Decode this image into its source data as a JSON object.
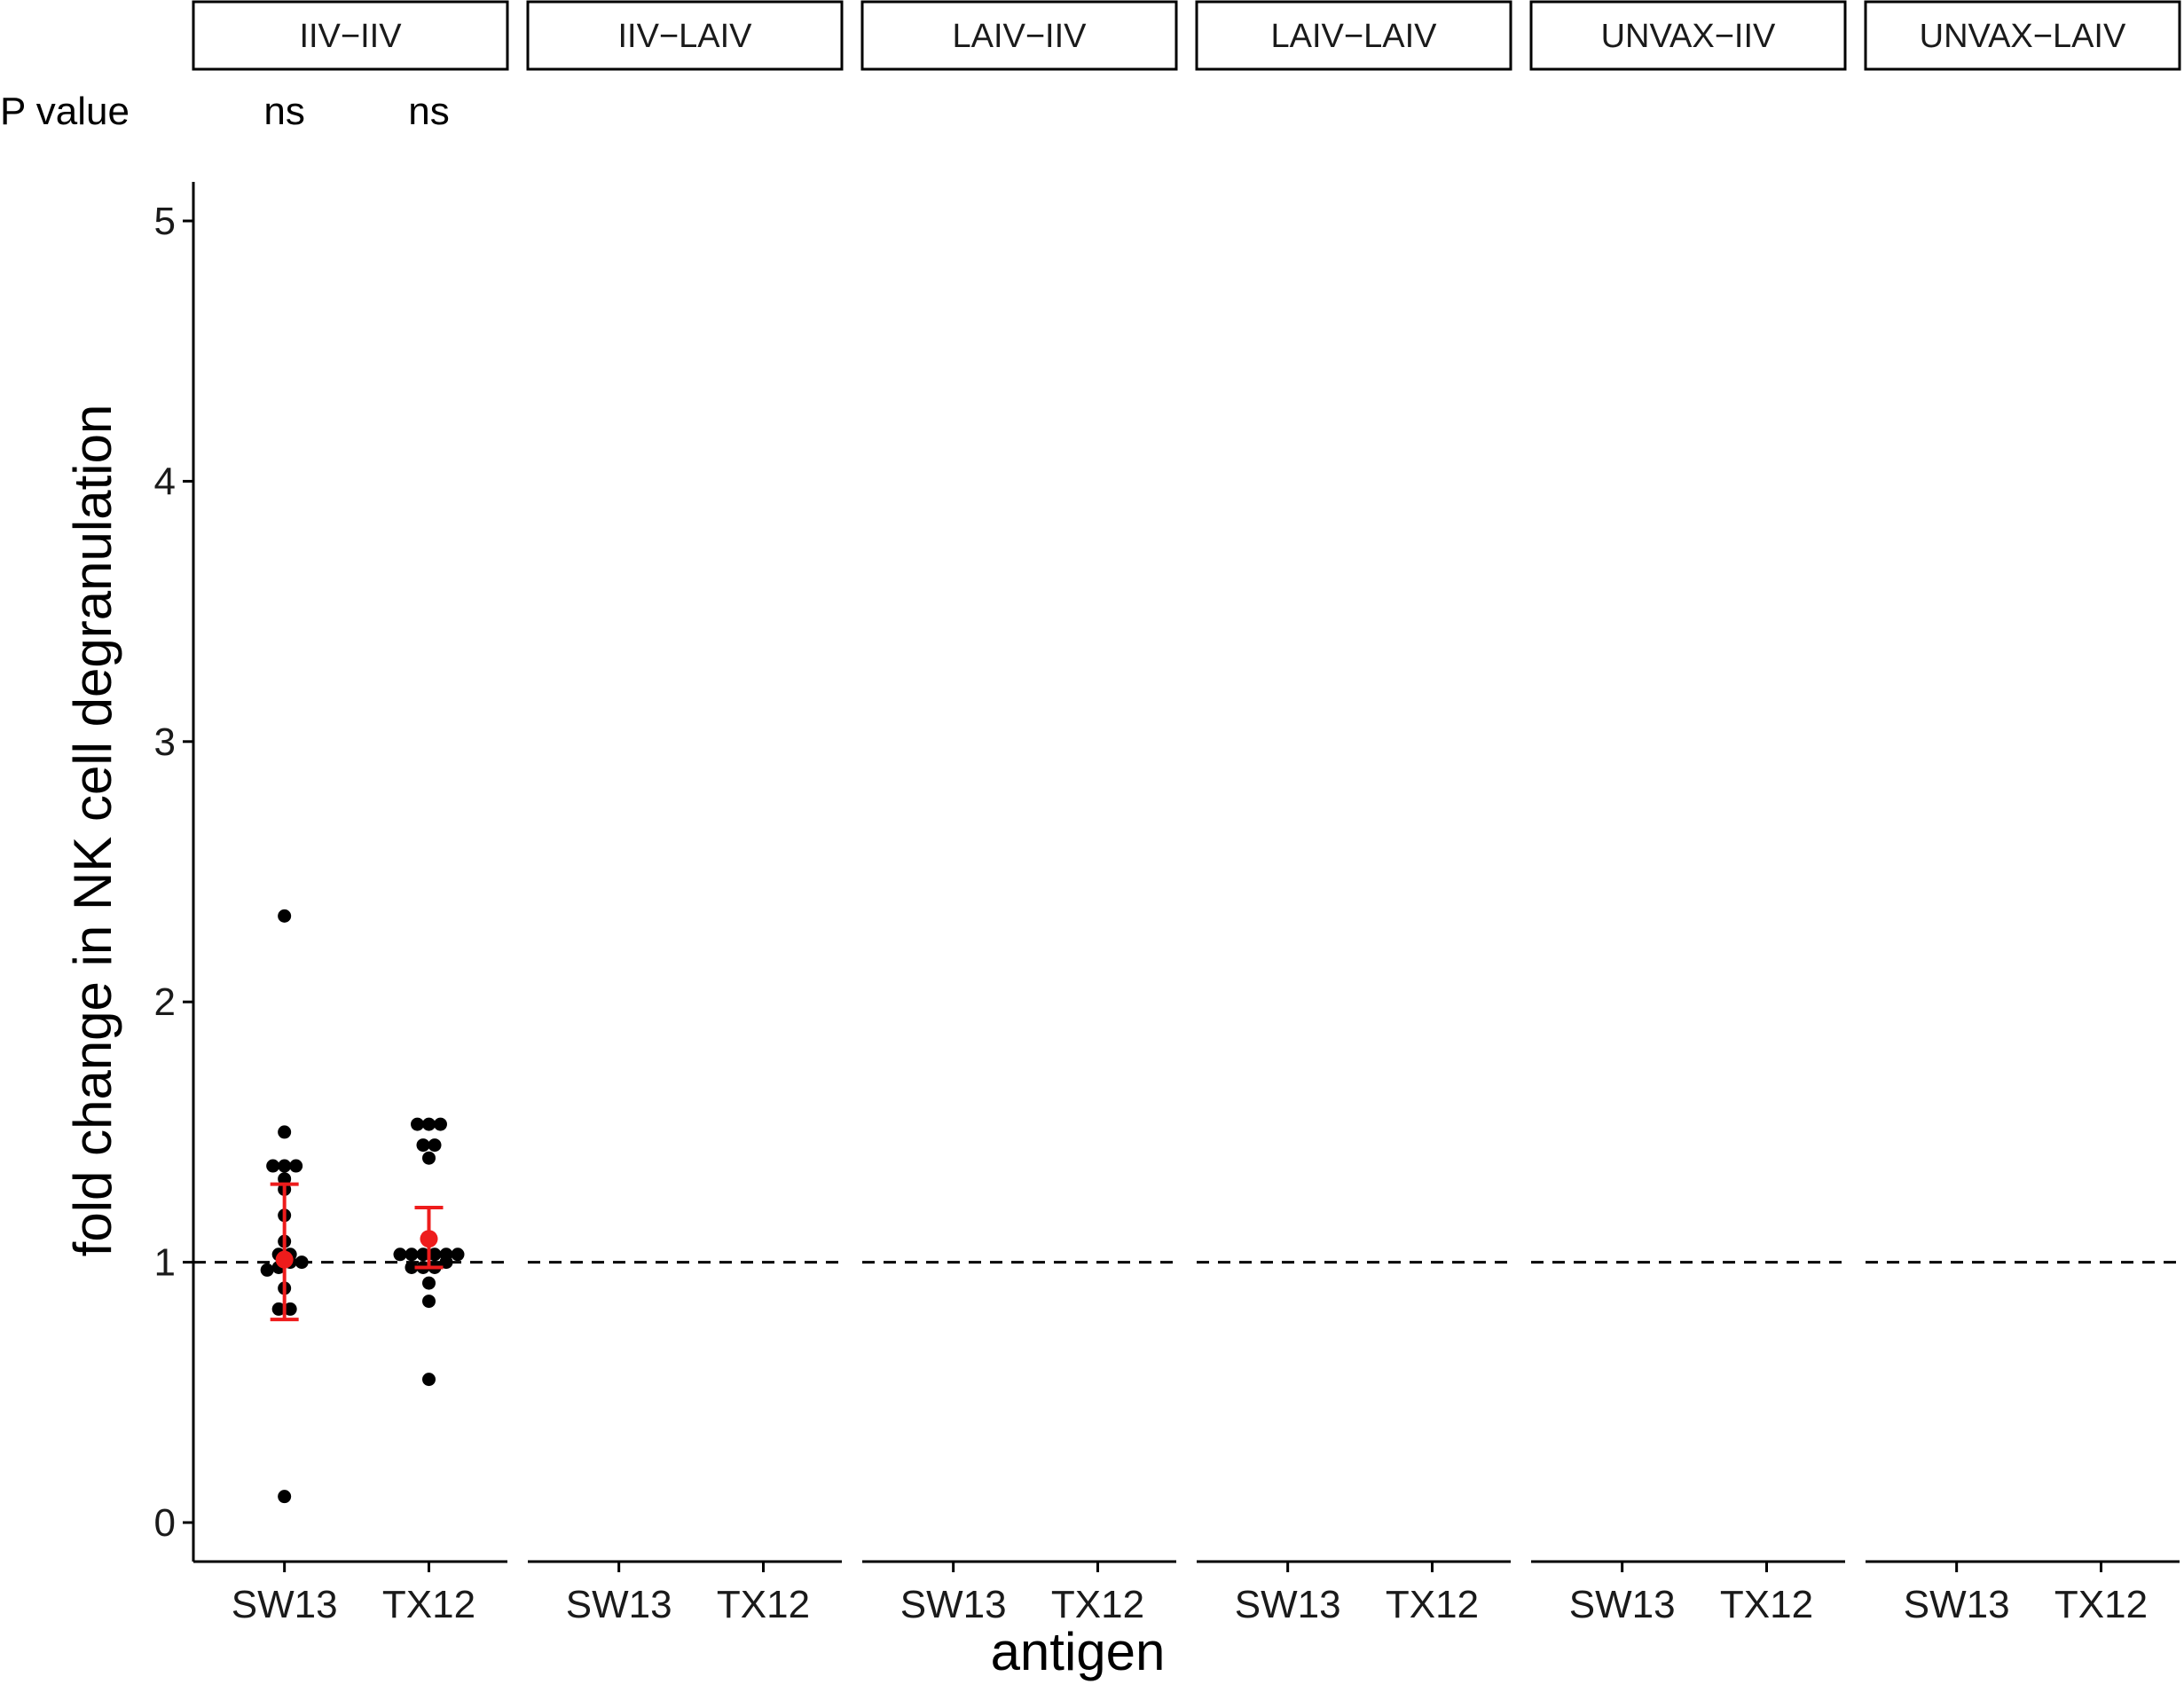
{
  "chart_data": {
    "type": "scatter",
    "ylabel": "fold change in NK cell degranulation",
    "xlabel": "antigen",
    "pvalue_label": "P value",
    "ylim": [
      -0.15,
      5.15
    ],
    "yticks": [
      0,
      1,
      2,
      3,
      4,
      5
    ],
    "reference_line": 1,
    "categories": [
      "SW13",
      "TX12"
    ],
    "colors": {
      "points": "#000000",
      "summary": "#ee1c1c"
    },
    "panels": [
      {
        "name": "IIV−IIV",
        "pvalues": [
          "ns",
          "ns"
        ],
        "groups": [
          {
            "category": "SW13",
            "points": [
              2.33,
              1.5,
              1.37,
              1.37,
              1.37,
              1.32,
              1.28,
              1.18,
              1.08,
              1.03,
              1.03,
              1.0,
              1.0,
              0.98,
              0.97,
              0.9,
              0.82,
              0.82,
              0.1
            ],
            "mean": 1.01,
            "err_low": 0.78,
            "err_high": 1.3
          },
          {
            "category": "TX12",
            "points": [
              1.53,
              1.53,
              1.53,
              1.45,
              1.45,
              1.4,
              1.03,
              1.03,
              1.03,
              1.03,
              1.03,
              1.03,
              1.0,
              0.98,
              0.98,
              0.98,
              0.92,
              0.85,
              0.55
            ],
            "mean": 1.09,
            "err_low": 0.98,
            "err_high": 1.21
          }
        ]
      },
      {
        "name": "IIV−LAIV",
        "pvalues": [],
        "groups": []
      },
      {
        "name": "LAIV−IIV",
        "pvalues": [],
        "groups": []
      },
      {
        "name": "LAIV−LAIV",
        "pvalues": [],
        "groups": []
      },
      {
        "name": "UNVAX−IIV",
        "pvalues": [],
        "groups": []
      },
      {
        "name": "UNVAX−LAIV",
        "pvalues": [],
        "groups": []
      }
    ]
  }
}
